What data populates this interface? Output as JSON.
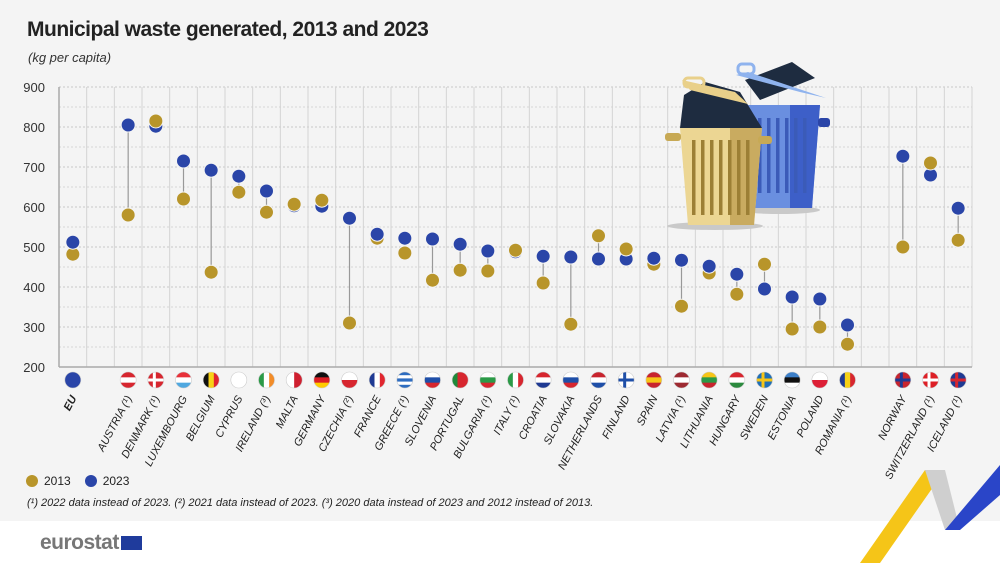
{
  "title": "Municipal waste generated, 2013 and 2023",
  "subtitle": "(kg per capita)",
  "legend": [
    {
      "label": "2013",
      "color": "#b8952a"
    },
    {
      "label": "2023",
      "color": "#2a45a8"
    }
  ],
  "footnote": "(¹) 2022 data instead of 2023. (²) 2021 data instead of 2023. (³) 2020 data instead of 2023 and 2012 instead of 2013.",
  "logo": "eurostat",
  "chart_data": {
    "type": "dot-plot",
    "title": "Municipal waste generated, 2013 and 2023",
    "ylabel": "(kg per capita)",
    "ylim": [
      200,
      900
    ],
    "yticks": [
      200,
      300,
      400,
      500,
      600,
      700,
      800,
      900
    ],
    "grid": true,
    "legend_position": "bottom-left",
    "categories": [
      {
        "label": "EU",
        "bold": true,
        "flag": [
          "#2a45a8"
        ],
        "v2013": 482,
        "v2023": 512
      },
      null,
      {
        "label": "AUSTRIA (¹)",
        "flag": [
          "#d7262f",
          "#ffffff",
          "#d7262f"
        ],
        "v2013": 580,
        "v2023": 805
      },
      {
        "label": "DENMARK (¹)",
        "flag": [
          "#d7262f"
        ],
        "cross": "#ffffff",
        "v2013": 815,
        "v2023": 802
      },
      {
        "label": "LUXEMBOURG",
        "flag": [
          "#e8313a",
          "#ffffff",
          "#4fa8e0"
        ],
        "v2013": 620,
        "v2023": 715
      },
      {
        "label": "BELGIUM",
        "vertical": true,
        "flag": [
          "#111111",
          "#f7d117",
          "#e0232e"
        ],
        "v2013": 437,
        "v2023": 692
      },
      {
        "label": "CYPRUS",
        "flag": [
          "#ffffff"
        ],
        "v2013": 637,
        "v2023": 677
      },
      {
        "label": "IRELAND (³)",
        "vertical": true,
        "flag": [
          "#2b9a47",
          "#ffffff",
          "#f28c28"
        ],
        "v2013": 587,
        "v2023": 640
      },
      {
        "label": "MALTA",
        "vertical": true,
        "flag": [
          "#ffffff",
          "#cf2030"
        ],
        "v2013": 607,
        "v2023": 603
      },
      {
        "label": "GERMANY",
        "flag": [
          "#111111",
          "#dd1f26",
          "#ffcc00"
        ],
        "v2013": 617,
        "v2023": 602
      },
      {
        "label": "CZECHIA (²)",
        "flag": [
          "#ffffff",
          "#d7262f"
        ],
        "v2013": 310,
        "v2023": 572
      },
      {
        "label": "FRANCE",
        "vertical": true,
        "flag": [
          "#1f3a93",
          "#ffffff",
          "#e1262f"
        ],
        "v2013": 522,
        "v2023": 532
      },
      {
        "label": "GREECE (¹)",
        "flag": [
          "#2d6cc0",
          "#ffffff",
          "#2d6cc0",
          "#ffffff",
          "#2d6cc0"
        ],
        "v2013": 485,
        "v2023": 522
      },
      {
        "label": "SLOVENIA",
        "flag": [
          "#ffffff",
          "#1f4fa8",
          "#d7262f"
        ],
        "v2013": 417,
        "v2023": 520
      },
      {
        "label": "PORTUGAL",
        "vertical": true,
        "flag": [
          "#1f8a3a",
          "#d7262f",
          "#d7262f"
        ],
        "v2013": 442,
        "v2023": 507
      },
      {
        "label": "BULGARIA (¹)",
        "flag": [
          "#ffffff",
          "#2b9a47",
          "#d7262f"
        ],
        "v2013": 440,
        "v2023": 490
      },
      {
        "label": "ITALY (¹)",
        "vertical": true,
        "flag": [
          "#2b9a47",
          "#ffffff",
          "#d7262f"
        ],
        "v2013": 492,
        "v2023": 488
      },
      {
        "label": "CROATIA",
        "flag": [
          "#d7262f",
          "#ffffff",
          "#1f3a93"
        ],
        "v2013": 410,
        "v2023": 477
      },
      {
        "label": "SLOVAKIA",
        "flag": [
          "#ffffff",
          "#1f4fa8",
          "#d7262f"
        ],
        "v2013": 307,
        "v2023": 475
      },
      {
        "label": "NETHERLANDS",
        "flag": [
          "#c8242e",
          "#ffffff",
          "#1f4fa8"
        ],
        "v2013": 528,
        "v2023": 470
      },
      {
        "label": "FINLAND",
        "flag": [
          "#ffffff"
        ],
        "cross": "#1f4fa8",
        "v2013": 495,
        "v2023": 470
      },
      {
        "label": "SPAIN",
        "flag": [
          "#c8242e",
          "#f7c517",
          "#c8242e"
        ],
        "v2013": 457,
        "v2023": 472
      },
      {
        "label": "LATVIA (¹)",
        "flag": [
          "#9e2a32",
          "#ffffff",
          "#9e2a32"
        ],
        "v2013": 352,
        "v2023": 467
      },
      {
        "label": "LITHUANIA",
        "flag": [
          "#f7c517",
          "#2b9a47",
          "#c8242e"
        ],
        "v2013": 435,
        "v2023": 452
      },
      {
        "label": "HUNGARY",
        "flag": [
          "#d7262f",
          "#ffffff",
          "#2b8a3e"
        ],
        "v2013": 382,
        "v2023": 432
      },
      {
        "label": "SWEDEN",
        "flag": [
          "#1f6fb8"
        ],
        "cross": "#f7c517",
        "v2013": 457,
        "v2023": 395
      },
      {
        "label": "ESTONIA",
        "flag": [
          "#3c7fc8",
          "#111111",
          "#ffffff"
        ],
        "v2013": 295,
        "v2023": 375
      },
      {
        "label": "POLAND",
        "flag": [
          "#ffffff",
          "#dd1f36"
        ],
        "v2013": 300,
        "v2023": 370
      },
      {
        "label": "ROMANIA (¹)",
        "vertical": true,
        "flag": [
          "#1f3a93",
          "#f7d117",
          "#d7262f"
        ],
        "v2013": 257,
        "v2023": 305
      },
      null,
      {
        "label": "NORWAY",
        "flag": [
          "#c8242e"
        ],
        "cross": "#1f3a93",
        "v2013": 500,
        "v2023": 727
      },
      {
        "label": "SWITZERLAND (¹)",
        "flag": [
          "#dd1f26"
        ],
        "cross": "#ffffff",
        "v2013": 710,
        "v2023": 680
      },
      {
        "label": "ICELAND (¹)",
        "flag": [
          "#1f3a93"
        ],
        "cross": "#d7262f",
        "v2013": 517,
        "v2023": 597
      }
    ]
  }
}
